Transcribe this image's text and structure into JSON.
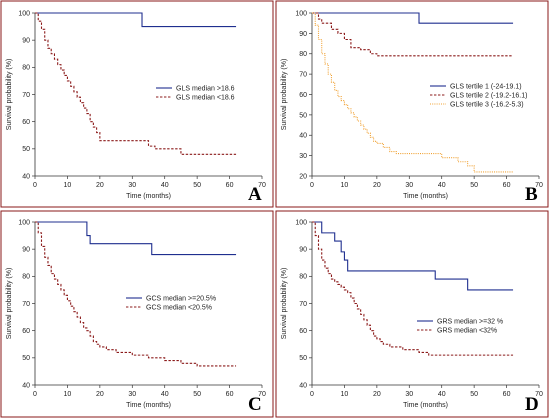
{
  "chart_data": [
    {
      "type": "line",
      "panel": "A",
      "xlabel": "Time (months)",
      "ylabel": "Survival probability (%)",
      "xlim": [
        0,
        70
      ],
      "ylim": [
        40,
        100
      ],
      "xticks": [
        "0",
        "10",
        "20",
        "30",
        "40",
        "50",
        "60",
        "70"
      ],
      "yticks": [
        "40",
        "50",
        "60",
        "70",
        "80",
        "90",
        "100"
      ],
      "legend_position": "center-right",
      "series": [
        {
          "name": "GLS median >18.6",
          "color": "#1f2f8f",
          "style": "solid",
          "x": [
            0,
            33,
            33,
            62
          ],
          "y": [
            100,
            100,
            95,
            95
          ]
        },
        {
          "name": "GLS median <18.6",
          "color": "#8b1a1a",
          "style": "dashed",
          "x": [
            0,
            1,
            2,
            3,
            4,
            5,
            6,
            7,
            8,
            9,
            10,
            11,
            12,
            13,
            14,
            15,
            16,
            17,
            18,
            19,
            20,
            22,
            35,
            37,
            45,
            62
          ],
          "y": [
            100,
            97,
            94,
            90,
            87,
            85,
            83,
            81,
            79,
            77,
            75,
            73,
            71,
            69,
            67,
            65,
            63,
            60,
            58,
            56,
            53,
            53,
            51,
            50,
            48,
            48
          ]
        }
      ]
    },
    {
      "type": "line",
      "panel": "B",
      "xlabel": "Time (months)",
      "ylabel": "Survival probability (%)",
      "xlim": [
        0,
        70
      ],
      "ylim": [
        20,
        100
      ],
      "xticks": [
        "0",
        "10",
        "20",
        "30",
        "40",
        "50",
        "60",
        "70"
      ],
      "yticks": [
        "20",
        "30",
        "40",
        "50",
        "60",
        "70",
        "80",
        "90",
        "100"
      ],
      "legend_position": "center-right",
      "series": [
        {
          "name": "GLS tertile 1 (-24-19.1)",
          "color": "#1f2f8f",
          "style": "solid",
          "x": [
            0,
            33,
            33,
            62
          ],
          "y": [
            100,
            100,
            95,
            95
          ]
        },
        {
          "name": "GLS tertile 2 (-19.2-16.1)",
          "color": "#8b1a1a",
          "style": "dashed",
          "x": [
            0,
            2,
            3,
            6,
            8,
            10,
            12,
            15,
            18,
            20,
            62
          ],
          "y": [
            100,
            97,
            95,
            92,
            90,
            87,
            83,
            82,
            80,
            79,
            79
          ]
        },
        {
          "name": "GLS tertile 3 (-16.2-5.3)",
          "color": "#f0a030",
          "style": "dotted",
          "x": [
            0,
            1,
            2,
            3,
            4,
            5,
            6,
            7,
            8,
            9,
            10,
            11,
            12,
            13,
            14,
            15,
            16,
            17,
            18,
            19,
            20,
            22,
            24,
            26,
            30,
            35,
            40,
            45,
            48,
            50,
            62
          ],
          "y": [
            100,
            94,
            87,
            80,
            75,
            70,
            66,
            62,
            59,
            57,
            55,
            53,
            51,
            49,
            47,
            45,
            43,
            41,
            39,
            37,
            36,
            34,
            32,
            31,
            31,
            31,
            29,
            27,
            25,
            22,
            22
          ]
        }
      ]
    },
    {
      "type": "line",
      "panel": "C",
      "xlabel": "Time (months)",
      "ylabel": "Survival probability (%)",
      "xlim": [
        0,
        70
      ],
      "ylim": [
        40,
        100
      ],
      "xticks": [
        "0",
        "10",
        "20",
        "30",
        "40",
        "50",
        "60",
        "70"
      ],
      "yticks": [
        "40",
        "50",
        "60",
        "70",
        "80",
        "90",
        "100"
      ],
      "legend_position": "center-right",
      "series": [
        {
          "name": "GCS median >=20.5%",
          "color": "#1f2f8f",
          "style": "solid",
          "x": [
            0,
            16,
            16,
            17,
            17,
            36,
            36,
            62
          ],
          "y": [
            100,
            100,
            95,
            95,
            92,
            92,
            88,
            88
          ]
        },
        {
          "name": "GCS median <20.5%",
          "color": "#8b1a1a",
          "style": "dashed",
          "x": [
            0,
            1,
            2,
            3,
            4,
            5,
            6,
            7,
            8,
            9,
            10,
            11,
            12,
            13,
            14,
            15,
            16,
            17,
            18,
            19,
            20,
            22,
            25,
            30,
            35,
            40,
            45,
            50,
            62
          ],
          "y": [
            100,
            96,
            91,
            87,
            84,
            81,
            79,
            77,
            75,
            73,
            71,
            69,
            67,
            65,
            63,
            61,
            60,
            58,
            56,
            55,
            54,
            53,
            52,
            51,
            50,
            49,
            48,
            47,
            47
          ]
        }
      ]
    },
    {
      "type": "line",
      "panel": "D",
      "xlabel": "Time (months)",
      "ylabel": "Survival probability (%)",
      "xlim": [
        0,
        70
      ],
      "ylim": [
        40,
        100
      ],
      "xticks": [
        "0",
        "10",
        "20",
        "30",
        "40",
        "50",
        "60",
        "70"
      ],
      "yticks": [
        "40",
        "50",
        "60",
        "70",
        "80",
        "90",
        "100"
      ],
      "legend_position": "center-right",
      "series": [
        {
          "name": "GRS median >=32 %",
          "color": "#1f2f8f",
          "style": "solid",
          "x": [
            0,
            3,
            3,
            7,
            7,
            9,
            9,
            10,
            10,
            11,
            11,
            38,
            38,
            48,
            48,
            62
          ],
          "y": [
            100,
            100,
            96,
            96,
            93,
            93,
            89,
            89,
            86,
            86,
            82,
            82,
            79,
            79,
            75,
            75
          ]
        },
        {
          "name": "GRS median <32%",
          "color": "#8b1a1a",
          "style": "dashed",
          "x": [
            0,
            1,
            2,
            3,
            4,
            5,
            6,
            7,
            8,
            9,
            10,
            11,
            12,
            13,
            14,
            15,
            16,
            17,
            18,
            19,
            20,
            21,
            22,
            24,
            28,
            33,
            36,
            62
          ],
          "y": [
            100,
            95,
            90,
            86,
            83,
            81,
            79,
            78,
            77,
            76,
            75,
            74,
            72,
            70,
            68,
            66,
            64,
            62,
            60,
            58,
            57,
            56,
            55,
            54,
            53,
            52,
            51,
            51
          ]
        }
      ]
    }
  ]
}
